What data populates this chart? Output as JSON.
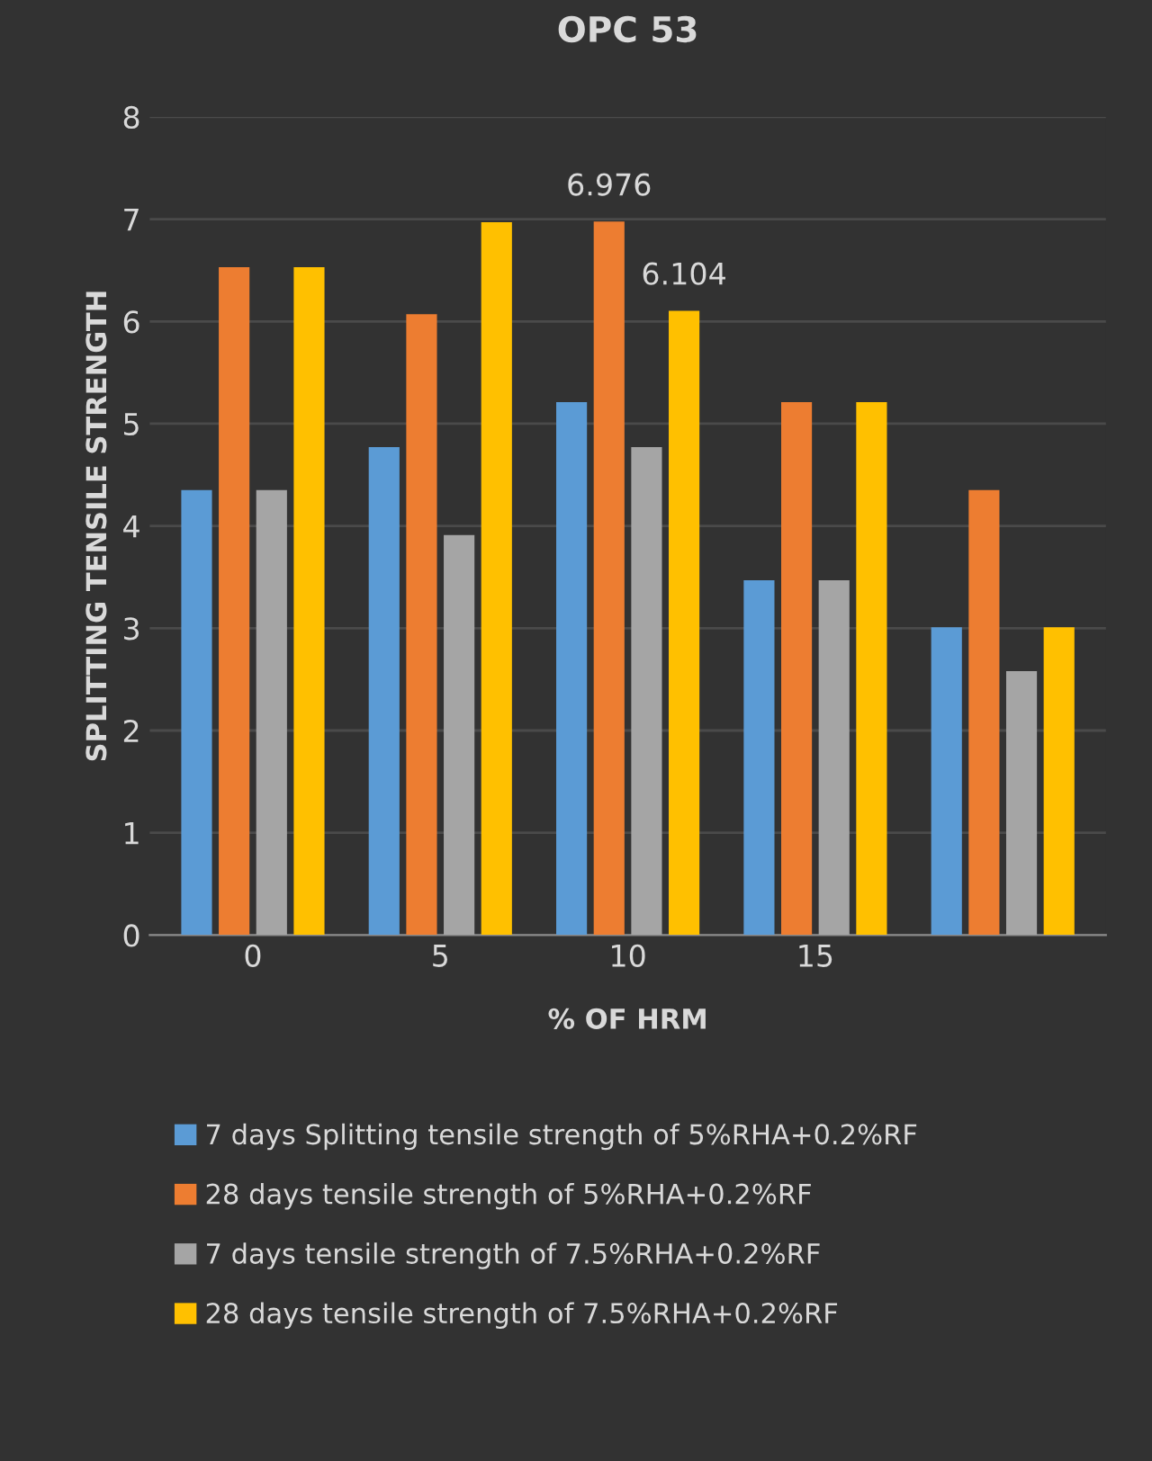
{
  "chart_data": {
    "type": "bar",
    "title": "OPC 53",
    "xlabel": "% OF HRM",
    "ylabel": "SPLITTING TENSILE STRENGTH",
    "categories": [
      "0",
      "5",
      "10",
      "15",
      null
    ],
    "series": [
      {
        "name": "7 days Splitting tensile strength of 5%RHA+0.2%RF",
        "color": "#5b9bd5",
        "values": [
          4.35,
          4.77,
          5.21,
          3.47,
          3.01
        ]
      },
      {
        "name": "28 days tensile strength of 5%RHA+0.2%RF",
        "color": "#ed7d31",
        "values": [
          6.53,
          6.07,
          6.976,
          5.21,
          4.35
        ],
        "value_labels": [
          null,
          null,
          "6.976",
          null,
          null
        ]
      },
      {
        "name": "7 days tensile strength of 7.5%RHA+0.2%RF",
        "color": "#a5a5a5",
        "values": [
          4.35,
          3.91,
          4.77,
          3.47,
          2.58
        ]
      },
      {
        "name": "28 days tensile strength of 7.5%RHA+0.2%RF",
        "color": "#ffc000",
        "values": [
          6.53,
          6.97,
          6.104,
          5.21,
          3.01
        ],
        "value_labels": [
          null,
          null,
          "6.104",
          null,
          null
        ]
      }
    ],
    "ylim": [
      0,
      8
    ],
    "yticks": [
      0,
      1,
      2,
      3,
      4,
      5,
      6,
      7,
      8
    ],
    "grid": "y",
    "legend": "bottom"
  }
}
